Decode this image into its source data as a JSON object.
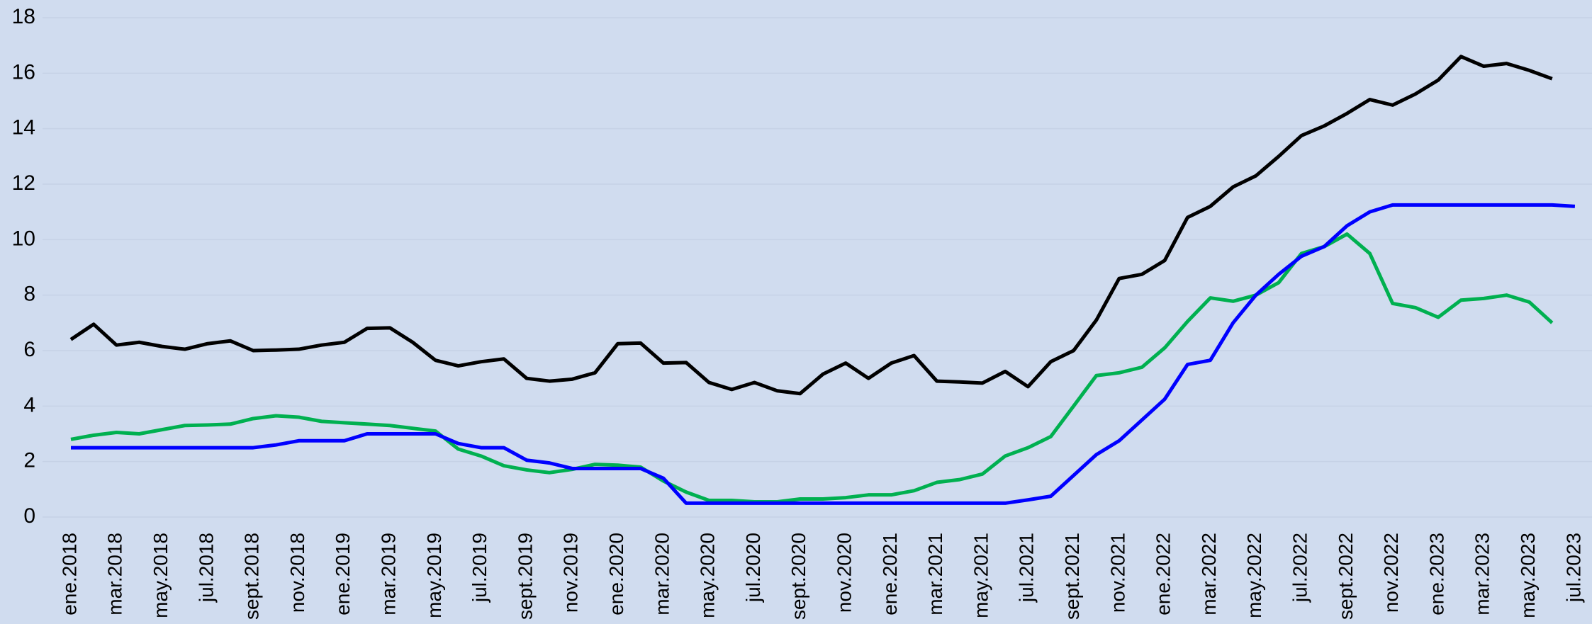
{
  "chart_data": {
    "type": "line",
    "categories": [
      "ene.2018",
      null,
      "mar.2018",
      null,
      "may.2018",
      null,
      "jul.2018",
      null,
      "sept.2018",
      null,
      "nov.2018",
      null,
      "ene.2019",
      null,
      "mar.2019",
      null,
      "may.2019",
      null,
      "jul.2019",
      null,
      "sept.2019",
      null,
      "nov.2019",
      null,
      "ene.2020",
      null,
      "mar.2020",
      null,
      "may.2020",
      null,
      "jul.2020",
      null,
      "sept.2020",
      null,
      "nov.2020",
      null,
      "ene.2021",
      null,
      "mar.2021",
      null,
      "may.2021",
      null,
      "jul.2021",
      null,
      "sept.2021",
      null,
      "nov.2021",
      null,
      "ene.2022",
      null,
      "mar.2022",
      null,
      "may.2022",
      null,
      "jul.2022",
      null,
      "sept.2022",
      null,
      "nov.2022",
      null,
      "ene.2023",
      null,
      "mar.2023",
      null,
      "may.2023",
      null,
      "jul.2023"
    ],
    "series": [
      {
        "color": "#000000",
        "values": [
          6.4,
          6.95,
          6.2,
          6.3,
          6.15,
          6.05,
          6.25,
          6.35,
          6.0,
          6.02,
          6.05,
          6.2,
          6.3,
          6.8,
          6.82,
          6.3,
          5.65,
          5.45,
          5.6,
          5.7,
          5.0,
          4.9,
          4.97,
          5.2,
          6.25,
          6.27,
          5.55,
          5.57,
          4.85,
          4.6,
          4.85,
          4.55,
          4.45,
          5.15,
          5.55,
          5.0,
          5.55,
          5.82,
          4.9,
          4.87,
          4.83,
          5.25,
          4.7,
          5.6,
          6.0,
          7.1,
          8.6,
          8.75,
          9.25,
          10.8,
          11.2,
          11.9,
          12.3,
          13.0,
          13.75,
          14.1,
          14.55,
          15.05,
          14.85,
          15.25,
          15.75,
          16.6,
          16.25,
          16.35,
          16.1,
          15.8,
          null
        ]
      },
      {
        "color": "#00b050",
        "values": [
          2.8,
          2.95,
          3.05,
          3.0,
          3.15,
          3.3,
          3.32,
          3.35,
          3.55,
          3.65,
          3.6,
          3.45,
          3.4,
          3.35,
          3.3,
          3.2,
          3.1,
          2.45,
          2.2,
          1.85,
          1.7,
          1.6,
          1.72,
          1.9,
          1.87,
          1.8,
          1.3,
          0.9,
          0.6,
          0.6,
          0.55,
          0.55,
          0.65,
          0.65,
          0.7,
          0.8,
          0.8,
          0.95,
          1.25,
          1.35,
          1.55,
          2.2,
          2.5,
          2.9,
          4.0,
          5.1,
          5.2,
          5.4,
          6.1,
          7.05,
          7.9,
          7.78,
          8.0,
          8.45,
          9.5,
          9.75,
          10.2,
          9.5,
          7.7,
          7.55,
          7.2,
          7.82,
          7.88,
          8.0,
          7.75,
          7.0,
          null
        ]
      },
      {
        "color": "#0000ff",
        "values": [
          2.5,
          2.5,
          2.5,
          2.5,
          2.5,
          2.5,
          2.5,
          2.5,
          2.5,
          2.6,
          2.75,
          2.75,
          2.75,
          3.0,
          3.0,
          3.0,
          3.0,
          2.65,
          2.5,
          2.5,
          2.05,
          1.95,
          1.75,
          1.75,
          1.75,
          1.75,
          1.4,
          0.5,
          0.5,
          0.5,
          0.5,
          0.5,
          0.5,
          0.5,
          0.5,
          0.5,
          0.5,
          0.5,
          0.5,
          0.5,
          0.5,
          0.5,
          0.62,
          0.75,
          1.5,
          2.25,
          2.75,
          3.5,
          4.25,
          5.5,
          5.65,
          7.0,
          8.0,
          8.75,
          9.4,
          9.75,
          10.5,
          11.0,
          11.25,
          11.25,
          11.25,
          11.25,
          11.25,
          11.25,
          11.25,
          11.25,
          11.2
        ]
      }
    ],
    "ylim": [
      0,
      18
    ],
    "yticks": [
      0,
      2,
      4,
      6,
      8,
      10,
      12,
      14,
      16,
      18
    ],
    "grid": true
  }
}
